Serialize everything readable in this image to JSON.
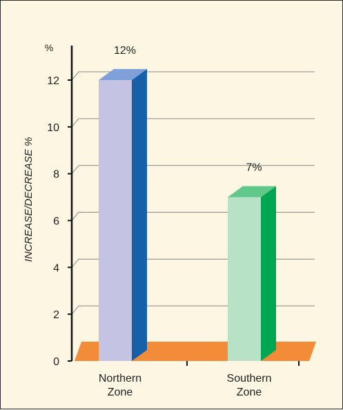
{
  "chart_data": {
    "type": "bar",
    "categories": [
      "Northern\nZone",
      "Southern\nZone"
    ],
    "series": [
      {
        "values": [
          12,
          7
        ],
        "data_labels": [
          "12%",
          "7%"
        ]
      }
    ],
    "ylabel": "INCREASE/DECREASE %",
    "yunit": "%",
    "ylim": [
      0,
      12
    ],
    "yticks": [
      0,
      2,
      4,
      6,
      8,
      10,
      12
    ],
    "grid": true,
    "three_d": true,
    "colors": {
      "background": "#FDF6E3",
      "floor": "#F28C38",
      "gridline": "#8A8A8A",
      "bars": [
        {
          "front": "#C5C3E4",
          "side": "#1560A8",
          "top": "#7FA0D8"
        },
        {
          "front": "#B8E2C6",
          "side": "#00A651",
          "top": "#5FC88A"
        }
      ]
    }
  }
}
